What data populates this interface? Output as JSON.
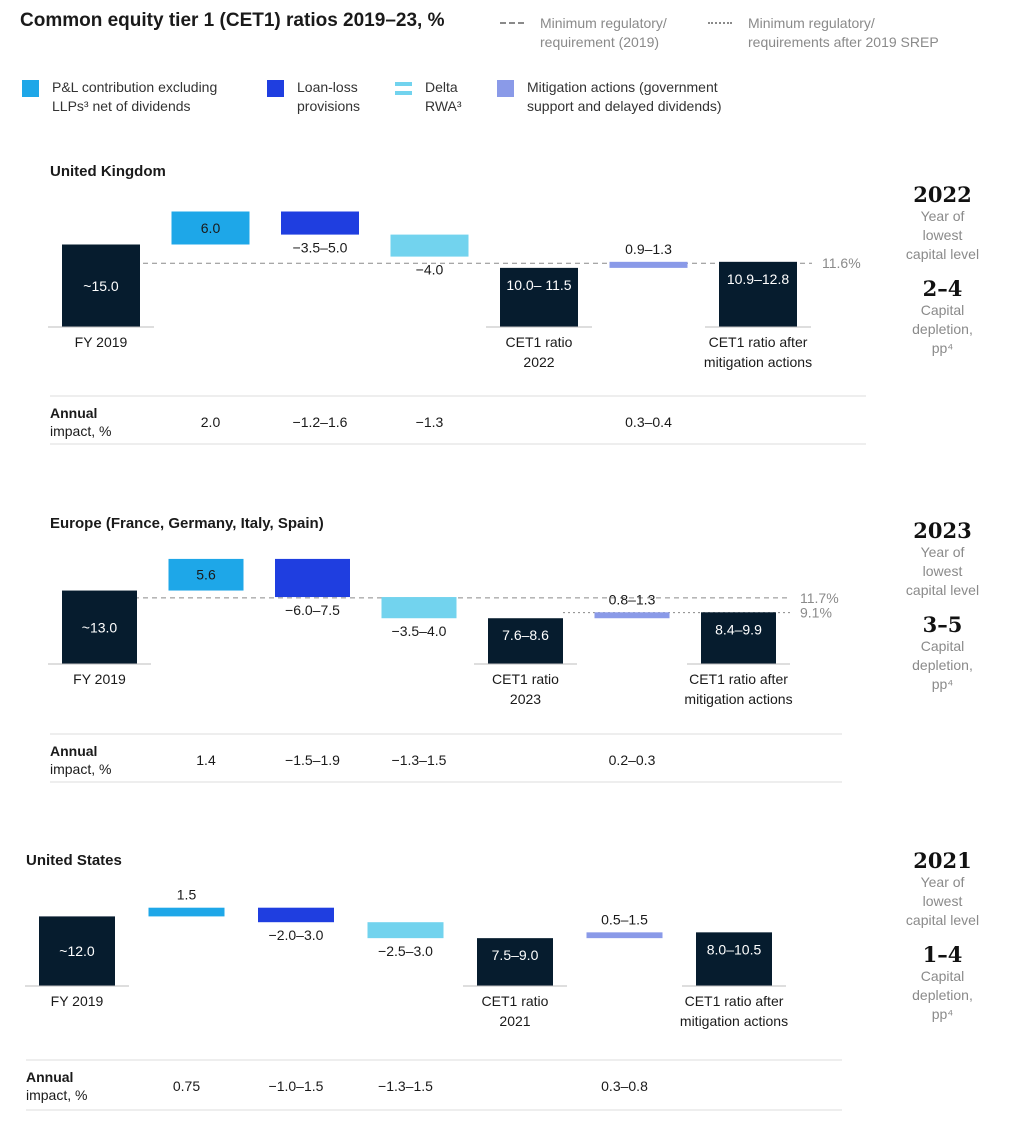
{
  "title": "Common equity tier 1 (CET1) ratios 2019–23, %",
  "ref_legend": [
    {
      "label_line1": "Minimum regulatory/",
      "label_line2": "requirement (2019)",
      "style": "dashed"
    },
    {
      "label_line1": "Minimum regulatory/",
      "label_line2": "requirements after 2019 SREP",
      "style": "dotted"
    }
  ],
  "legend": [
    {
      "line1": "P&L contribution excluding",
      "line2": "LLPs³ net of dividends",
      "color": "#1ea7e8"
    },
    {
      "line1": "Loan-loss",
      "line2": "provisions",
      "color": "#1f3ee0"
    },
    {
      "line1": "Delta",
      "line2": "RWA³",
      "color": "#72d3ee"
    },
    {
      "line1": "Mitigation actions (government",
      "line2": "support and delayed dividends)",
      "color": "#8a9ae8"
    }
  ],
  "row_label_line1": "Annual",
  "row_label_line2": "impact, %",
  "colors": {
    "dark": "#061c2e",
    "pl": "#1ea7e8",
    "llp": "#1f3ee0",
    "rwa": "#72d3ee",
    "mit": "#8a9ae8"
  },
  "chart_data": [
    {
      "type": "bar",
      "subtype": "waterfall",
      "region": "United Kingdom",
      "categories": [
        "FY 2019",
        "P&L contribution excluding LLPs net of dividends",
        "Loan-loss provisions",
        "Delta RWA",
        "CET1 ratio 2022",
        "Mitigation actions",
        "CET1 ratio after mitigation actions"
      ],
      "x_labels": [
        "FY 2019",
        "",
        "",
        "",
        "CET1 ratio 2022",
        "",
        "CET1 ratio after mitigation actions"
      ],
      "value_labels": [
        "~15.0",
        "6.0",
        "−3.5–5.0",
        "−4.0",
        "10.0– 11.5",
        "0.9–1.3",
        "10.9–12.8"
      ],
      "values": [
        15.0,
        6.0,
        -4.2,
        -4.0,
        10.75,
        1.1,
        11.85
      ],
      "annual_impact": [
        "",
        "2.0",
        "−1.2–1.6",
        "−1.3",
        "",
        "0.3–0.4",
        ""
      ],
      "reference_lines": [
        {
          "value": 11.6,
          "label": "11.6%",
          "style": "dashed"
        }
      ],
      "summary": {
        "year": "2022",
        "year_label": [
          "Year of",
          "lowest",
          "capital level"
        ],
        "depletion": "2–4",
        "depletion_label": [
          "Capital",
          "depletion,",
          "pp⁴"
        ]
      }
    },
    {
      "type": "bar",
      "subtype": "waterfall",
      "region": "Europe (France, Germany, Italy, Spain)",
      "categories": [
        "FY 2019",
        "P&L contribution excluding LLPs net of dividends",
        "Loan-loss provisions",
        "Delta RWA",
        "CET1 ratio 2023",
        "Mitigation actions",
        "CET1 ratio after mitigation actions"
      ],
      "x_labels": [
        "FY 2019",
        "",
        "",
        "",
        "CET1 ratio 2023",
        "",
        "CET1 ratio after mitigation actions"
      ],
      "value_labels": [
        "~13.0",
        "5.6",
        "−6.0–7.5",
        "−3.5–4.0",
        "7.6–8.6",
        "0.8–1.3",
        "8.4–9.9"
      ],
      "values": [
        13.0,
        5.6,
        -6.75,
        -3.75,
        8.1,
        1.05,
        9.15
      ],
      "annual_impact": [
        "",
        "1.4",
        "−1.5–1.9",
        "−1.3–1.5",
        "",
        "0.2–0.3",
        ""
      ],
      "reference_lines": [
        {
          "value": 11.7,
          "label": "11.7%",
          "style": "dashed"
        },
        {
          "value": 9.1,
          "label": "9.1%",
          "style": "dotted"
        }
      ],
      "summary": {
        "year": "2023",
        "year_label": [
          "Year of",
          "lowest",
          "capital level"
        ],
        "depletion": "3–5",
        "depletion_label": [
          "Capital",
          "depletion,",
          "pp⁴"
        ]
      }
    },
    {
      "type": "bar",
      "subtype": "waterfall",
      "region": "United States",
      "categories": [
        "FY 2019",
        "P&L contribution excluding LLPs net of dividends",
        "Loan-loss provisions",
        "Delta RWA",
        "CET1 ratio 2021",
        "Mitigation actions",
        "CET1 ratio after mitigation actions"
      ],
      "x_labels": [
        "FY 2019",
        "",
        "",
        "",
        "CET1 ratio 2021",
        "",
        "CET1 ratio after mitigation actions"
      ],
      "value_labels": [
        "~12.0",
        "1.5",
        "−2.0–3.0",
        "−2.5–3.0",
        "7.5–9.0",
        "0.5–1.5",
        "8.0–10.5"
      ],
      "values": [
        12.0,
        1.5,
        -2.5,
        -2.75,
        8.25,
        1.0,
        9.25
      ],
      "annual_impact": [
        "",
        "0.75",
        "−1.0–1.5",
        "−1.3–1.5",
        "",
        "0.3–0.8",
        ""
      ],
      "reference_lines": [],
      "summary": {
        "year": "2021",
        "year_label": [
          "Year of",
          "lowest",
          "capital level"
        ],
        "depletion": "1–4",
        "depletion_label": [
          "Capital",
          "depletion,",
          "pp⁴"
        ]
      }
    }
  ]
}
